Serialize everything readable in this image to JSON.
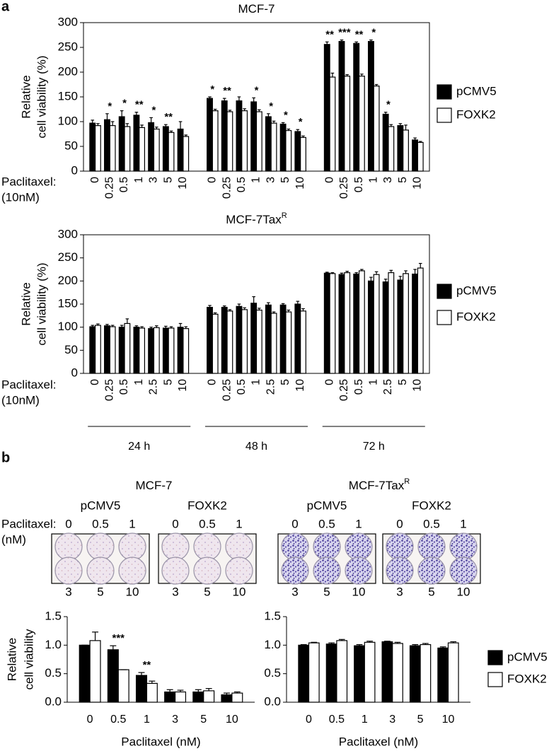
{
  "panel_labels": [
    "a",
    "b"
  ],
  "chart_data": [
    {
      "type": "bar",
      "title": "MCF-7",
      "ylabel": [
        "Relative",
        "cell viability (%)"
      ],
      "xlabel": [
        "Paclitaxel:",
        "(10nM)"
      ],
      "categories": [
        "0",
        "0.25",
        "0.5",
        "1",
        "3",
        "5",
        "10",
        "0",
        "0.25",
        "0.5",
        "1",
        "3",
        "5",
        "10",
        "0",
        "0.25",
        "0.5",
        "1",
        "3",
        "5",
        "10"
      ],
      "series": [
        {
          "name": "pCMV5",
          "color": "#000000",
          "values": [
            97,
            104,
            110,
            113,
            98,
            90,
            85,
            147,
            142,
            142,
            140,
            110,
            95,
            80,
            256,
            262,
            258,
            262,
            115,
            92,
            63
          ],
          "errors": [
            6,
            12,
            12,
            6,
            10,
            4,
            15,
            3,
            5,
            8,
            8,
            6,
            3,
            4,
            5,
            3,
            3,
            3,
            4,
            4,
            4
          ]
        },
        {
          "name": "FOXK2",
          "color": "#ffffff",
          "values": [
            92,
            92,
            90,
            88,
            85,
            78,
            70,
            122,
            120,
            122,
            120,
            97,
            82,
            68,
            190,
            192,
            192,
            172,
            90,
            83,
            58
          ],
          "errors": [
            4,
            8,
            6,
            5,
            4,
            3,
            3,
            3,
            3,
            4,
            4,
            4,
            3,
            3,
            8,
            3,
            4,
            3,
            4,
            10,
            2
          ]
        }
      ],
      "stars": [
        null,
        "*",
        "*",
        "**",
        "*",
        "**",
        null,
        "*",
        "**",
        null,
        "*",
        "*",
        "*",
        "*",
        "**",
        "***",
        "**",
        "*",
        "*",
        null,
        null
      ],
      "ylim": [
        0,
        300
      ],
      "yticks": [
        0,
        50,
        100,
        150,
        200,
        250,
        300
      ],
      "legend": "right",
      "box": true
    },
    {
      "type": "bar",
      "title": "MCF-7Tax",
      "title_sup": "R",
      "ylabel": [
        "Relative",
        "cell viability (%)"
      ],
      "xlabel": [
        "Paclitaxel:",
        "(10nM)"
      ],
      "categories": [
        "0",
        "0.25",
        "0.5",
        "1",
        "2.5",
        "5",
        "10",
        "0",
        "0.25",
        "0.5",
        "1",
        "2.5",
        "5",
        "10",
        "0",
        "0.25",
        "0.5",
        "1",
        "2.5",
        "5",
        "10"
      ],
      "groups": [
        "24 h",
        "48 h",
        "72 h"
      ],
      "series": [
        {
          "name": "pCMV5",
          "color": "#000000",
          "values": [
            101,
            103,
            100,
            100,
            97,
            98,
            100,
            143,
            143,
            145,
            152,
            148,
            148,
            150,
            217,
            214,
            215,
            200,
            198,
            202,
            215
          ],
          "errors": [
            3,
            3,
            4,
            3,
            3,
            4,
            8,
            4,
            3,
            5,
            14,
            5,
            3,
            6,
            2,
            3,
            3,
            8,
            6,
            8,
            10
          ]
        },
        {
          "name": "FOXK2",
          "color": "#ffffff",
          "values": [
            104,
            101,
            108,
            98,
            99,
            98,
            97,
            128,
            135,
            138,
            137,
            130,
            133,
            135,
            216,
            218,
            222,
            214,
            218,
            216,
            228
          ],
          "errors": [
            3,
            3,
            10,
            3,
            4,
            3,
            4,
            3,
            3,
            4,
            4,
            3,
            4,
            5,
            2,
            3,
            3,
            6,
            5,
            6,
            10
          ]
        }
      ],
      "ylim": [
        0,
        300
      ],
      "yticks": [
        0,
        50,
        100,
        150,
        200,
        250,
        300
      ],
      "legend": "right",
      "box": true
    },
    {
      "type": "bar",
      "ylabel": [
        "Relative",
        "cell viability"
      ],
      "xlabel": "Paclitaxel (nM)",
      "categories": [
        "0",
        "0.5",
        "1",
        "3",
        "5",
        "10"
      ],
      "series": [
        {
          "name": "pCMV5",
          "color": "#000000",
          "values": [
            1.0,
            0.92,
            0.47,
            0.18,
            0.18,
            0.13
          ],
          "errors": [
            0.0,
            0.07,
            0.05,
            0.04,
            0.04,
            0.03
          ]
        },
        {
          "name": "FOXK2",
          "color": "#ffffff",
          "values": [
            1.08,
            0.57,
            0.33,
            0.18,
            0.2,
            0.16
          ],
          "errors": [
            0.15,
            0.0,
            0.04,
            0.03,
            0.04,
            0.02
          ]
        }
      ],
      "stars": [
        null,
        "***",
        "**",
        null,
        null,
        null
      ],
      "ylim": [
        0,
        1.5
      ],
      "yticks": [
        {
          "value": 0,
          "label": "0.0"
        },
        {
          "value": 0.5,
          "label": "0.5"
        },
        {
          "value": 1,
          "label": "1.0"
        },
        {
          "value": 1.5,
          "label": "1.5"
        }
      ]
    },
    {
      "type": "bar",
      "xlabel": "Paclitaxel (nM)",
      "categories": [
        "0",
        "0.5",
        "1",
        "3",
        "5",
        "10"
      ],
      "series": [
        {
          "name": "pCMV5",
          "color": "#000000",
          "values": [
            1.0,
            1.02,
            0.99,
            1.06,
            0.99,
            0.95
          ],
          "errors": [
            0.01,
            0.02,
            0.02,
            0.01,
            0.02,
            0.02
          ]
        },
        {
          "name": "FOXK2",
          "color": "#ffffff",
          "values": [
            1.04,
            1.08,
            1.05,
            1.03,
            1.01,
            1.04
          ],
          "errors": [
            0.01,
            0.02,
            0.02,
            0.02,
            0.02,
            0.02
          ]
        }
      ],
      "ylim": [
        0,
        1.5
      ],
      "yticks": [
        {
          "value": 0,
          "label": "0.0"
        },
        {
          "value": 0.5,
          "label": "0.5"
        },
        {
          "value": 1,
          "label": "1.0"
        },
        {
          "value": 1.5,
          "label": "1.5"
        }
      ],
      "legend": "right"
    }
  ],
  "plates": {
    "label": [
      "Paclitaxel:",
      "(nM)"
    ],
    "top_doses": [
      "0",
      "0.5",
      "1"
    ],
    "bottom_doses": [
      "3",
      "5",
      "10"
    ],
    "groups": [
      {
        "title": "MCF-7",
        "conditions": [
          "pCMV5",
          "FOXK2"
        ],
        "stain": "faint"
      },
      {
        "title": "MCF-7Tax",
        "title_sup": "R",
        "conditions": [
          "pCMV5",
          "FOXK2"
        ],
        "stain": "dense"
      }
    ]
  }
}
